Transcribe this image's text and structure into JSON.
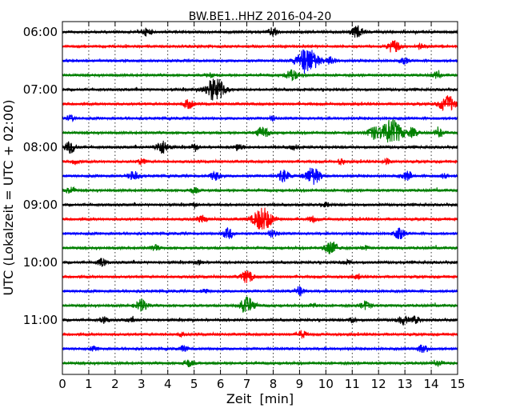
{
  "chart_data": {
    "type": "line",
    "title": "BW.BE1..HHZ 2016-04-20",
    "xlabel": "Zeit  [min]",
    "ylabel": "UTC (Lokalzeit = UTC + 02:00)",
    "xlim": [
      0,
      15
    ],
    "x_ticks": [
      "0",
      "1",
      "2",
      "3",
      "4",
      "5",
      "6",
      "7",
      "8",
      "9",
      "10",
      "11",
      "12",
      "13",
      "14",
      "15"
    ],
    "y_tick_labels": [
      {
        "label": "06:00",
        "row": 0
      },
      {
        "label": "07:00",
        "row": 4
      },
      {
        "label": "08:00",
        "row": 8
      },
      {
        "label": "09:00",
        "row": 12
      },
      {
        "label": "10:00",
        "row": 16
      },
      {
        "label": "11:00",
        "row": 20
      }
    ],
    "x_grid": "dotted",
    "row_minutes": 15,
    "colors": [
      "#000000",
      "#ff0000",
      "#0000ff",
      "#008000"
    ],
    "series": [
      {
        "start": "06:00",
        "color": "#000000",
        "events": [
          [
            3.2,
            0.5
          ],
          [
            8.0,
            0.6
          ],
          [
            11.2,
            0.8
          ]
        ]
      },
      {
        "start": "06:15",
        "color": "#ff0000",
        "events": [
          [
            12.6,
            0.8
          ],
          [
            13.6,
            0.4
          ]
        ]
      },
      {
        "start": "06:30",
        "color": "#0000ff",
        "events": [
          [
            9.3,
            1.8
          ],
          [
            10.2,
            0.5
          ],
          [
            13.0,
            0.4
          ]
        ]
      },
      {
        "start": "06:45",
        "color": "#008000",
        "events": [
          [
            5.6,
            0.3
          ],
          [
            8.7,
            0.8
          ],
          [
            14.2,
            0.4
          ]
        ]
      },
      {
        "start": "07:00",
        "color": "#000000",
        "events": [
          [
            5.8,
            1.6
          ]
        ]
      },
      {
        "start": "07:15",
        "color": "#ff0000",
        "events": [
          [
            4.8,
            0.6
          ],
          [
            14.6,
            1.2
          ]
        ]
      },
      {
        "start": "07:30",
        "color": "#0000ff",
        "events": [
          [
            0.3,
            0.4
          ],
          [
            8.0,
            0.3
          ]
        ]
      },
      {
        "start": "07:45",
        "color": "#008000",
        "events": [
          [
            7.6,
            0.8
          ],
          [
            11.8,
            0.8
          ],
          [
            12.5,
            1.8
          ],
          [
            13.3,
            0.6
          ],
          [
            14.3,
            0.5
          ]
        ]
      },
      {
        "start": "08:00",
        "color": "#000000",
        "events": [
          [
            0.3,
            0.8
          ],
          [
            3.8,
            0.9
          ],
          [
            5.0,
            0.4
          ],
          [
            6.7,
            0.5
          ],
          [
            8.8,
            0.4
          ]
        ]
      },
      {
        "start": "08:15",
        "color": "#ff0000",
        "events": [
          [
            0.5,
            0.3
          ],
          [
            3.0,
            0.4
          ],
          [
            10.6,
            0.4
          ],
          [
            12.3,
            0.4
          ]
        ]
      },
      {
        "start": "08:30",
        "color": "#0000ff",
        "events": [
          [
            2.7,
            0.7
          ],
          [
            5.8,
            0.6
          ],
          [
            8.4,
            0.8
          ],
          [
            9.5,
            1.2
          ],
          [
            13.1,
            0.6
          ],
          [
            14.5,
            0.3
          ]
        ]
      },
      {
        "start": "08:45",
        "color": "#008000",
        "events": [
          [
            0.3,
            0.5
          ],
          [
            5.0,
            0.4
          ]
        ]
      },
      {
        "start": "09:00",
        "color": "#000000",
        "events": [
          [
            5.0,
            0.2
          ],
          [
            10.0,
            0.3
          ]
        ]
      },
      {
        "start": "09:15",
        "color": "#ff0000",
        "events": [
          [
            5.3,
            0.5
          ],
          [
            7.6,
            1.6
          ],
          [
            9.5,
            0.4
          ]
        ]
      },
      {
        "start": "09:30",
        "color": "#0000ff",
        "events": [
          [
            6.3,
            0.7
          ],
          [
            8.0,
            0.5
          ],
          [
            12.8,
            0.7
          ]
        ]
      },
      {
        "start": "09:45",
        "color": "#008000",
        "events": [
          [
            3.5,
            0.4
          ],
          [
            10.2,
            0.9
          ],
          [
            11.5,
            0.3
          ]
        ]
      },
      {
        "start": "10:00",
        "color": "#000000",
        "events": [
          [
            1.5,
            0.5
          ],
          [
            5.2,
            0.3
          ],
          [
            10.8,
            0.3
          ]
        ]
      },
      {
        "start": "10:15",
        "color": "#ff0000",
        "events": [
          [
            7.0,
            0.8
          ],
          [
            11.2,
            0.2
          ]
        ]
      },
      {
        "start": "10:30",
        "color": "#0000ff",
        "events": [
          [
            5.4,
            0.3
          ],
          [
            9.0,
            0.6
          ]
        ]
      },
      {
        "start": "10:45",
        "color": "#008000",
        "events": [
          [
            3.0,
            0.8
          ],
          [
            7.0,
            1.1
          ],
          [
            9.5,
            0.3
          ],
          [
            11.5,
            0.6
          ]
        ]
      },
      {
        "start": "11:00",
        "color": "#000000",
        "events": [
          [
            1.6,
            0.4
          ],
          [
            2.6,
            0.3
          ],
          [
            11.0,
            0.3
          ],
          [
            12.9,
            0.7
          ],
          [
            13.4,
            0.5
          ]
        ]
      },
      {
        "start": "11:15",
        "color": "#ff0000",
        "events": [
          [
            4.5,
            0.2
          ],
          [
            9.1,
            0.5
          ]
        ]
      },
      {
        "start": "11:30",
        "color": "#0000ff",
        "events": [
          [
            1.2,
            0.3
          ],
          [
            4.6,
            0.4
          ],
          [
            13.7,
            0.6
          ]
        ]
      },
      {
        "start": "11:45",
        "color": "#008000",
        "events": [
          [
            4.8,
            0.5
          ],
          [
            14.3,
            0.3
          ]
        ]
      }
    ]
  }
}
